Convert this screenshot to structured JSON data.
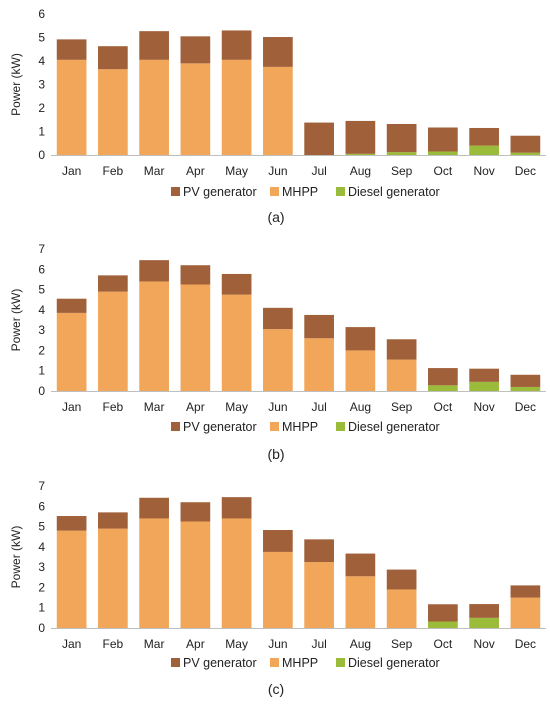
{
  "legend": [
    {
      "name": "PV generator",
      "color": "#a0603a"
    },
    {
      "name": "MHPP",
      "color": "#f2a65a"
    },
    {
      "name": "Diesel generator",
      "color": "#9bbb3a"
    }
  ],
  "chart_data": [
    {
      "type": "bar",
      "stacked": true,
      "panel_label": "(a)",
      "ylabel": "Power (kW)",
      "ylim": [
        0,
        6
      ],
      "yticks": [
        0,
        1,
        2,
        3,
        4,
        5,
        6
      ],
      "categories": [
        "Jan",
        "Feb",
        "Mar",
        "Apr",
        "May",
        "Jun",
        "Jul",
        "Aug",
        "Sep",
        "Oct",
        "Nov",
        "Dec"
      ],
      "series": [
        {
          "name": "Diesel generator",
          "color": "#9bbb3a",
          "values": [
            0,
            0,
            0,
            0,
            0,
            0,
            0,
            0.05,
            0.12,
            0.15,
            0.4,
            0.1
          ]
        },
        {
          "name": "MHPP",
          "color": "#f2a65a",
          "values": [
            4.05,
            3.65,
            4.05,
            3.9,
            4.05,
            3.75,
            0,
            0,
            0,
            0,
            0,
            0
          ]
        },
        {
          "name": "PV generator",
          "color": "#a0603a",
          "values": [
            0.87,
            0.98,
            1.22,
            1.15,
            1.25,
            1.27,
            1.38,
            1.4,
            1.2,
            1.02,
            0.75,
            0.72
          ]
        }
      ],
      "legend_position": "bottom"
    },
    {
      "type": "bar",
      "stacked": true,
      "panel_label": "(b)",
      "ylabel": "Power (kW)",
      "ylim": [
        0,
        7
      ],
      "yticks": [
        0,
        1,
        2,
        3,
        4,
        5,
        6,
        7
      ],
      "categories": [
        "Jan",
        "Feb",
        "Mar",
        "Apr",
        "May",
        "Jun",
        "Jul",
        "Aug",
        "Sep",
        "Oct",
        "Nov",
        "Dec"
      ],
      "series": [
        {
          "name": "Diesel generator",
          "color": "#9bbb3a",
          "values": [
            0,
            0,
            0,
            0,
            0,
            0,
            0,
            0,
            0,
            0.28,
            0.45,
            0.2
          ]
        },
        {
          "name": "MHPP",
          "color": "#f2a65a",
          "values": [
            3.85,
            4.9,
            5.4,
            5.25,
            4.75,
            3.05,
            2.6,
            2.0,
            1.55,
            0,
            0,
            0
          ]
        },
        {
          "name": "PV generator",
          "color": "#a0603a",
          "values": [
            0.7,
            0.8,
            1.05,
            0.95,
            1.02,
            1.05,
            1.15,
            1.15,
            1.0,
            0.85,
            0.65,
            0.6
          ]
        }
      ],
      "legend_position": "bottom"
    },
    {
      "type": "bar",
      "stacked": true,
      "panel_label": "(c)",
      "ylabel": "Power (kW)",
      "ylim": [
        0,
        7
      ],
      "yticks": [
        0,
        1,
        2,
        3,
        4,
        5,
        6,
        7
      ],
      "categories": [
        "Jan",
        "Feb",
        "Mar",
        "Apr",
        "May",
        "Jun",
        "Jul",
        "Aug",
        "Sep",
        "Oct",
        "Nov",
        "Dec"
      ],
      "series": [
        {
          "name": "Diesel generator",
          "color": "#9bbb3a",
          "values": [
            0,
            0,
            0,
            0,
            0,
            0,
            0,
            0,
            0,
            0.32,
            0.5,
            0
          ]
        },
        {
          "name": "MHPP",
          "color": "#f2a65a",
          "values": [
            4.8,
            4.9,
            5.4,
            5.25,
            5.4,
            3.75,
            3.25,
            2.55,
            1.9,
            0,
            0,
            1.5
          ]
        },
        {
          "name": "PV generator",
          "color": "#a0603a",
          "values": [
            0.72,
            0.8,
            1.02,
            0.95,
            1.05,
            1.08,
            1.12,
            1.12,
            0.98,
            0.85,
            0.68,
            0.6
          ]
        }
      ],
      "legend_position": "bottom"
    }
  ]
}
